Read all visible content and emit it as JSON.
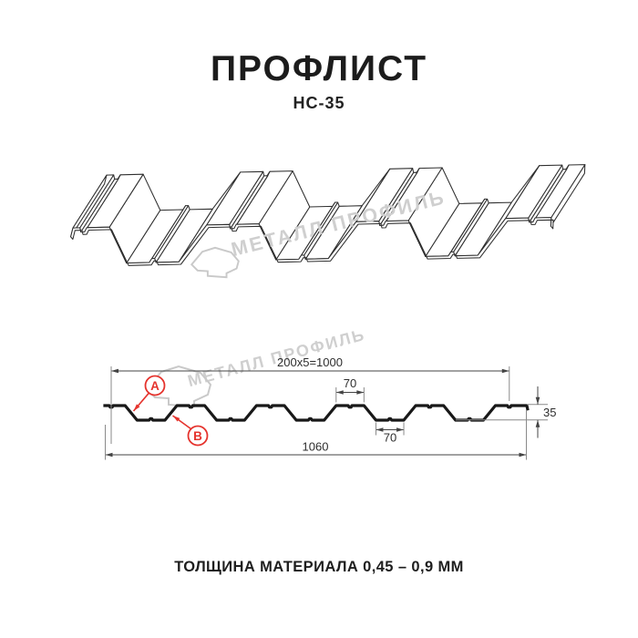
{
  "page": {
    "title": "ПРОФЛИСТ",
    "subtitle": "НС-35",
    "footer": "ТОЛЩИНА МАТЕРИАЛА 0,45 – 0,9 ММ"
  },
  "watermark": {
    "text": "МЕТАЛЛ ПРОФИЛЬ"
  },
  "drawing": {
    "dim_top": "200x5=1000",
    "dim_crest": "70",
    "dim_valley": "70",
    "dim_total": "1060",
    "dim_height": "35",
    "label_a": "A",
    "label_b": "B"
  },
  "profile_specs": {
    "useful_width_mm": 1000,
    "overall_width_mm": 1060,
    "rib_height_mm": 35,
    "crest_width_mm": 70,
    "valley_width_mm": 70,
    "pitch_mm": 200,
    "thickness_range_mm": "0,45 – 0,9"
  },
  "colors": {
    "line": "#2f2f2f",
    "profile": "#181818",
    "dim": "#444444",
    "ext": "#8a8a8a",
    "red": "#e5332d",
    "watermark": "#cfcfcf",
    "text": "#1c1c1c"
  }
}
